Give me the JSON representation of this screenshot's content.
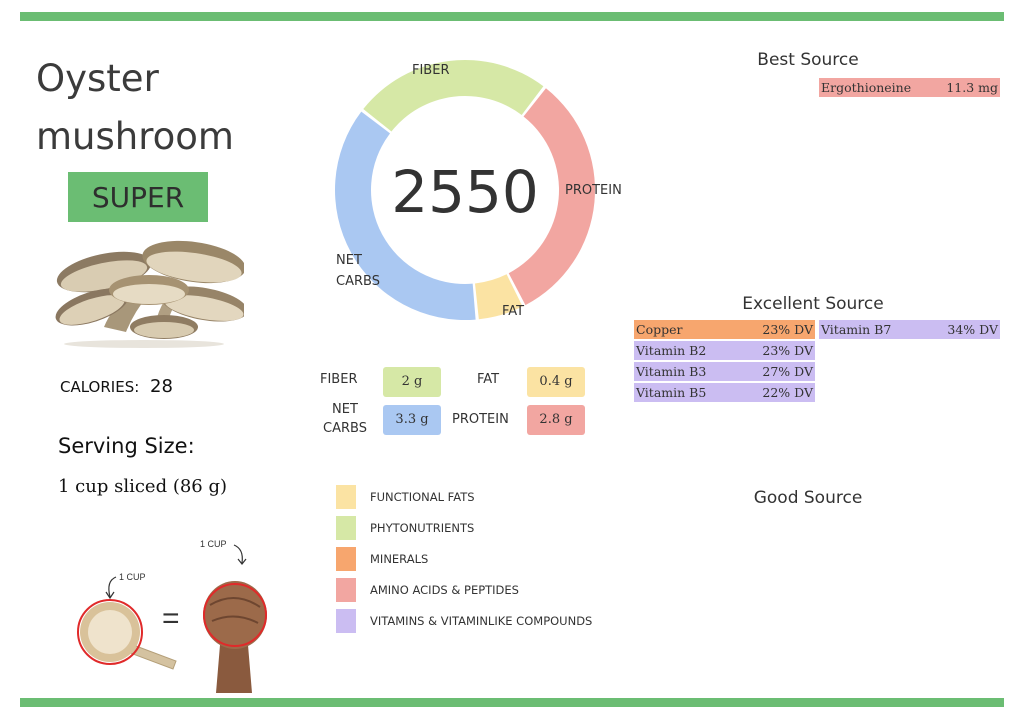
{
  "food": {
    "name_line1": "Oyster",
    "name_line2": "mushroom",
    "rating": "SUPER",
    "calories_label": "CALORIES:",
    "calories_value": "28",
    "serving_heading": "Serving Size:",
    "serving_value": "1 cup sliced (86 g)",
    "cup_label_left": "1 CUP",
    "cup_label_right": "1 CUP",
    "equals": "="
  },
  "score": {
    "total": "2550",
    "segments": [
      {
        "label": "FIBER",
        "fraction": 0.25,
        "color": "#d6e8a6"
      },
      {
        "label": "PROTEIN",
        "fraction": 0.32,
        "color": "#f2a6a1"
      },
      {
        "label": "FAT",
        "fraction": 0.06,
        "color": "#fbe3a3"
      },
      {
        "label": "NET CARBS",
        "fraction": 0.37,
        "color": "#aac8f2"
      }
    ]
  },
  "macros": {
    "fiber_label": "FIBER",
    "fiber_value": "2 g",
    "fiber_color": "#d6e8a6",
    "fat_label": "FAT",
    "fat_value": "0.4 g",
    "fat_color": "#fbe3a3",
    "net_carbs_label_1": "NET",
    "net_carbs_label_2": "CARBS",
    "net_carbs_value": "3.3 g",
    "net_carbs_color": "#aac8f2",
    "protein_label": "PROTEIN",
    "protein_value": "2.8 g",
    "protein_color": "#f2a6a1"
  },
  "legend": [
    {
      "label": "FUNCTIONAL FATS",
      "color": "#fbe3a3"
    },
    {
      "label": "PHYTONUTRIENTS",
      "color": "#d6e8a6"
    },
    {
      "label": "MINERALS",
      "color": "#f7a66e"
    },
    {
      "label": "AMINO ACIDS & PEPTIDES",
      "color": "#f2a6a1"
    },
    {
      "label": "VITAMINS & VITAMINLIKE COMPOUNDS",
      "color": "#cbbdf2"
    }
  ],
  "sources": {
    "best_heading": "Best Source",
    "best": [
      {
        "name": "Ergothioneine",
        "value": "11.3 mg",
        "color": "#f2a6a1"
      }
    ],
    "excellent_heading": "Excellent Source",
    "excellent": [
      {
        "name": "Copper",
        "value": "23% DV",
        "color": "#f7a66e"
      },
      {
        "name": "Vitamin B2",
        "value": "23% DV",
        "color": "#cbbdf2"
      },
      {
        "name": "Vitamin B3",
        "value": "27% DV",
        "color": "#cbbdf2"
      },
      {
        "name": "Vitamin B5",
        "value": "22% DV",
        "color": "#cbbdf2"
      },
      {
        "name": "Vitamin B7",
        "value": "34% DV",
        "color": "#cbbdf2"
      }
    ],
    "good_heading": "Good Source"
  }
}
